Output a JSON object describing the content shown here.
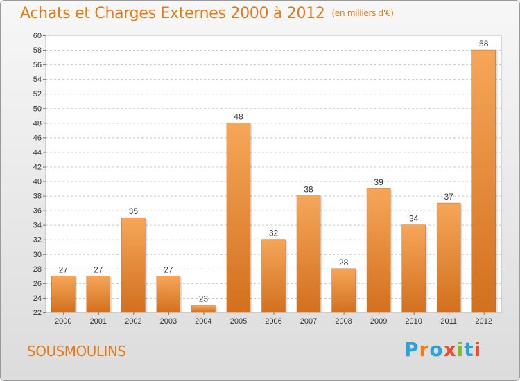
{
  "header": {
    "title": "Achats et Charges Externes 2000 à 2012",
    "unit": "(en milliers d'€)"
  },
  "footer": {
    "commune": "SOUSMOULINS",
    "logo": "Proxiti"
  },
  "colors": {
    "bar_top": "#f6a659",
    "bar_bottom": "#d2701e",
    "accent": "#e07b1a",
    "logo_p": "#2aa3d8",
    "logo_r": "#ef7d1a",
    "logo_o": "#2aa3d8",
    "logo_x": "#e94b2b",
    "logo_i1": "#7cbf2a",
    "logo_t": "#2aa3d8",
    "logo_i2": "#e94b2b"
  },
  "chart_data": {
    "type": "bar",
    "title": "Achats et Charges Externes 2000 à 2012",
    "subtitle": "(en milliers d'€)",
    "xlabel": "",
    "ylabel": "",
    "categories": [
      "2000",
      "2001",
      "2002",
      "2003",
      "2004",
      "2005",
      "2006",
      "2007",
      "2008",
      "2009",
      "2010",
      "2011",
      "2012"
    ],
    "values": [
      27,
      27,
      35,
      27,
      23,
      48,
      32,
      38,
      28,
      39,
      34,
      37,
      58
    ],
    "ylim": [
      22,
      60
    ],
    "ytick_step": 2,
    "grid": true,
    "legend": "none"
  }
}
